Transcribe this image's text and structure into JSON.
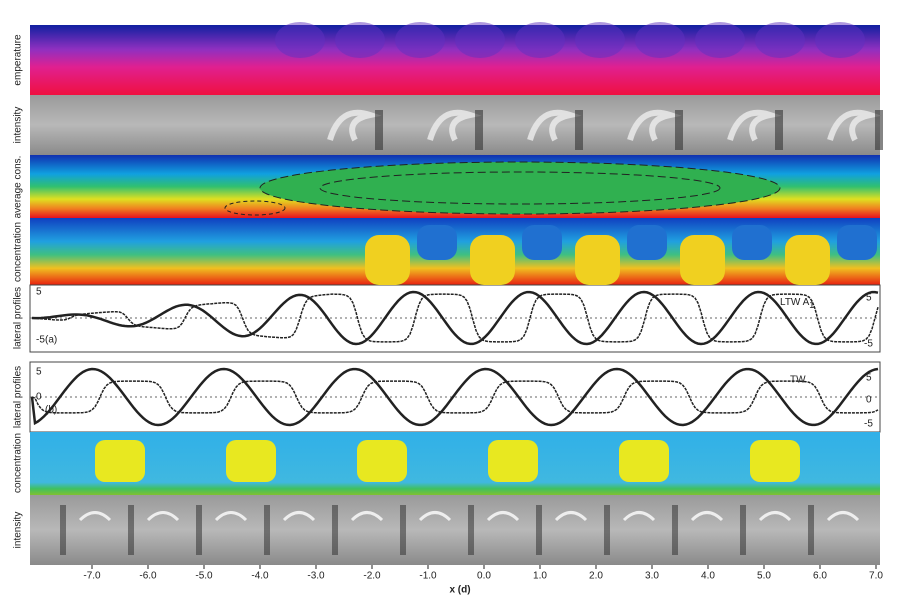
{
  "panels": {
    "temperature": "emperature",
    "intensity_a": "intensity",
    "average": "average cons.",
    "concentration_a": "concentration",
    "profiles_a": "lateral profiles",
    "profiles_b": "lateral profiles",
    "concentration_b": "concentration",
    "intensity_b": "intensity"
  },
  "profile_a": {
    "tag": "(a)",
    "name": "LTW A",
    "sub": "1",
    "left_ticks": [
      5,
      -5
    ],
    "right_ticks": [
      5,
      -5
    ]
  },
  "profile_b": {
    "tag": "(b)",
    "name": "TW",
    "left_ticks": [
      5,
      0
    ],
    "right_ticks": [
      5,
      0,
      -5
    ]
  },
  "x_axis": {
    "label": "x (d)",
    "ticks": [
      {
        "value": -7,
        "label": "-7.0"
      },
      {
        "value": -6,
        "label": "-6.0"
      },
      {
        "value": -5,
        "label": "-5.0"
      },
      {
        "value": -4,
        "label": "-4.0"
      },
      {
        "value": -3,
        "label": "-3.0"
      },
      {
        "value": -2,
        "label": "-2.0"
      },
      {
        "value": -1,
        "label": "-1.0"
      },
      {
        "value": 0,
        "label": "0.0"
      },
      {
        "value": 1,
        "label": "1.0"
      },
      {
        "value": 2,
        "label": "2.0"
      },
      {
        "value": 3,
        "label": "3.0"
      },
      {
        "value": 4,
        "label": "4.0"
      },
      {
        "value": 5,
        "label": "5.0"
      },
      {
        "value": 6,
        "label": "6.0"
      },
      {
        "value": 7,
        "label": "7.0"
      }
    ]
  }
}
